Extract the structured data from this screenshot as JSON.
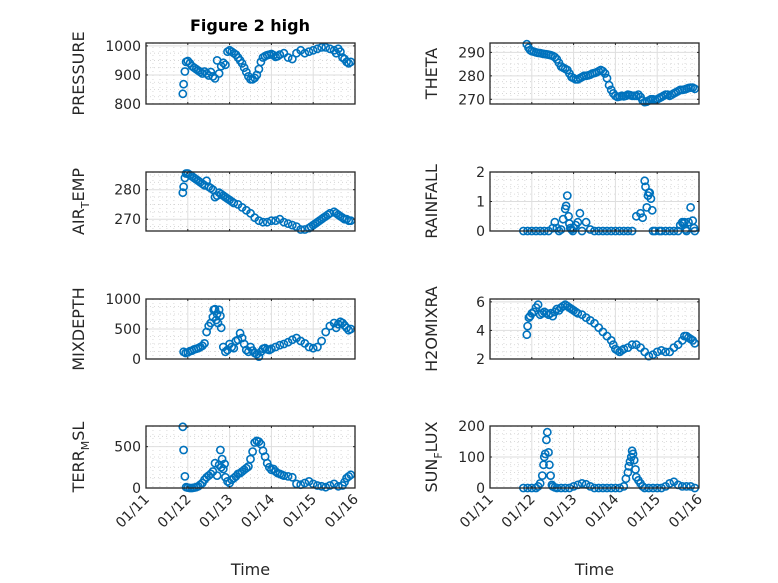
{
  "figure": {
    "title": "Figure 2 high",
    "marker_color": "#0072BD",
    "x_tick_labels": [
      "01/11",
      "01/12",
      "01/13",
      "01/14",
      "01/15",
      "01/16"
    ],
    "x_label": "Time"
  },
  "chart_data": [
    {
      "type": "scatter",
      "id": "pressure",
      "title": "Figure 2 high",
      "ylabel_main": "PRESSURE",
      "ylabel_sub": "",
      "ylabel_tail": "",
      "xlabel": "",
      "xlim_days": [
        0,
        5
      ],
      "ylim": [
        800,
        1010
      ],
      "yticks": [
        800,
        900,
        1000
      ],
      "x_days": [
        0.88,
        0.9,
        0.93,
        0.96,
        1.0,
        1.05,
        1.1,
        1.15,
        1.2,
        1.25,
        1.3,
        1.35,
        1.4,
        1.45,
        1.5,
        1.55,
        1.6,
        1.65,
        1.7,
        1.75,
        1.8,
        1.85,
        1.9,
        1.95,
        2.0,
        2.05,
        2.1,
        2.15,
        2.2,
        2.25,
        2.3,
        2.35,
        2.4,
        2.45,
        2.5,
        2.55,
        2.6,
        2.65,
        2.7,
        2.75,
        2.8,
        2.85,
        2.9,
        2.95,
        3.0,
        3.05,
        3.1,
        3.15,
        3.2,
        3.3,
        3.4,
        3.5,
        3.6,
        3.7,
        3.8,
        3.9,
        4.0,
        4.1,
        4.2,
        4.3,
        4.4,
        4.5,
        4.55,
        4.6,
        4.65,
        4.7,
        4.75,
        4.8,
        4.85,
        4.9
      ],
      "values": [
        835,
        868,
        912,
        945,
        948,
        940,
        930,
        925,
        920,
        915,
        910,
        905,
        912,
        905,
        898,
        910,
        895,
        888,
        950,
        905,
        930,
        942,
        935,
        980,
        985,
        980,
        975,
        970,
        960,
        950,
        940,
        925,
        910,
        895,
        885,
        885,
        890,
        900,
        920,
        945,
        960,
        965,
        968,
        970,
        972,
        968,
        962,
        965,
        970,
        975,
        960,
        955,
        975,
        985,
        975,
        980,
        985,
        990,
        995,
        995,
        990,
        985,
        975,
        990,
        980,
        960,
        955,
        945,
        940,
        945
      ]
    },
    {
      "type": "scatter",
      "id": "theta",
      "ylabel_main": "THETA",
      "ylabel_sub": "",
      "ylabel_tail": "",
      "xlabel": "",
      "xlim_days": [
        0,
        5
      ],
      "ylim": [
        268,
        294
      ],
      "yticks": [
        270,
        280,
        290
      ],
      "x_days": [
        0.88,
        0.92,
        0.96,
        1.0,
        1.05,
        1.1,
        1.15,
        1.2,
        1.25,
        1.3,
        1.35,
        1.4,
        1.45,
        1.5,
        1.55,
        1.6,
        1.65,
        1.7,
        1.75,
        1.8,
        1.85,
        1.9,
        1.95,
        2.0,
        2.05,
        2.1,
        2.15,
        2.2,
        2.25,
        2.3,
        2.35,
        2.4,
        2.45,
        2.5,
        2.55,
        2.6,
        2.65,
        2.7,
        2.75,
        2.8,
        2.85,
        2.9,
        2.95,
        3.0,
        3.05,
        3.1,
        3.15,
        3.2,
        3.25,
        3.3,
        3.35,
        3.4,
        3.45,
        3.5,
        3.55,
        3.6,
        3.65,
        3.7,
        3.75,
        3.8,
        3.85,
        3.9,
        3.95,
        4.0,
        4.05,
        4.1,
        4.15,
        4.2,
        4.25,
        4.3,
        4.35,
        4.4,
        4.45,
        4.5,
        4.55,
        4.6,
        4.65,
        4.7,
        4.75,
        4.8,
        4.85,
        4.9
      ],
      "values": [
        293.5,
        292,
        291,
        290.5,
        290.3,
        290,
        289.8,
        289.7,
        289.5,
        289.3,
        289.2,
        289,
        288.8,
        288.5,
        288,
        287,
        285.5,
        284,
        283.5,
        283,
        282.5,
        281,
        279.5,
        279,
        278.5,
        278.5,
        279,
        279.5,
        280,
        280,
        280.2,
        280.5,
        281,
        281.2,
        281.5,
        282,
        282.5,
        282,
        281,
        279,
        276,
        274,
        272.5,
        271.5,
        271,
        271.2,
        271.5,
        271.3,
        271.5,
        272,
        271.8,
        271.5,
        271.5,
        271.5,
        272,
        271,
        269.5,
        268.8,
        269,
        269.5,
        270,
        270,
        269.8,
        270,
        270.5,
        271,
        271.5,
        272,
        272,
        271.5,
        272,
        272.5,
        273,
        273.5,
        274,
        274,
        274.2,
        274.5,
        274.8,
        275,
        275,
        274.5
      ]
    },
    {
      "type": "scatter",
      "id": "air_temp",
      "ylabel_main": "AIR",
      "ylabel_sub": "T",
      "ylabel_tail": "EMP",
      "xlabel": "",
      "xlim_days": [
        0,
        5
      ],
      "ylim": [
        266,
        286
      ],
      "yticks": [
        270,
        280
      ],
      "x_days": [
        0.88,
        0.9,
        0.93,
        0.96,
        1.0,
        1.05,
        1.1,
        1.15,
        1.2,
        1.25,
        1.3,
        1.35,
        1.4,
        1.45,
        1.5,
        1.55,
        1.6,
        1.65,
        1.7,
        1.75,
        1.8,
        1.85,
        1.9,
        1.95,
        2.0,
        2.05,
        2.1,
        2.2,
        2.3,
        2.4,
        2.5,
        2.6,
        2.7,
        2.8,
        2.9,
        3.0,
        3.1,
        3.2,
        3.3,
        3.4,
        3.5,
        3.6,
        3.7,
        3.8,
        3.9,
        3.95,
        4.0,
        4.05,
        4.1,
        4.15,
        4.2,
        4.25,
        4.3,
        4.35,
        4.4,
        4.5,
        4.55,
        4.6,
        4.65,
        4.7,
        4.75,
        4.8,
        4.85,
        4.9
      ],
      "values": [
        279,
        281,
        284,
        285.5,
        285.5,
        285,
        284.5,
        284,
        283.5,
        283,
        282.5,
        282,
        281.5,
        283,
        281,
        280.5,
        280,
        277.5,
        278,
        279,
        278.5,
        278,
        277.5,
        277,
        276.5,
        276,
        275.5,
        275,
        274,
        273,
        272,
        270.5,
        269.5,
        269,
        269,
        269.5,
        269.5,
        270,
        269,
        268.5,
        268,
        267.5,
        266.5,
        266.5,
        267,
        267.5,
        268,
        268.5,
        269,
        269.5,
        270,
        270.5,
        271,
        271.5,
        272,
        272.5,
        272,
        271.5,
        271,
        270.5,
        270,
        270,
        269.5,
        269.5
      ]
    },
    {
      "type": "scatter",
      "id": "rainfall",
      "ylabel_main": "RAINFALL",
      "ylabel_sub": "",
      "ylabel_tail": "",
      "xlabel": "",
      "xlim_days": [
        0,
        5
      ],
      "ylim": [
        0,
        2
      ],
      "yticks": [
        0,
        1,
        2
      ],
      "x_days": [
        0.8,
        0.9,
        1.0,
        1.1,
        1.2,
        1.3,
        1.4,
        1.5,
        1.55,
        1.6,
        1.65,
        1.7,
        1.75,
        1.8,
        1.82,
        1.85,
        1.88,
        1.9,
        1.92,
        1.95,
        1.98,
        2.0,
        2.05,
        2.1,
        2.15,
        2.2,
        2.3,
        2.4,
        2.5,
        2.6,
        2.7,
        2.8,
        2.9,
        3.0,
        3.1,
        3.2,
        3.3,
        3.4,
        3.5,
        3.6,
        3.65,
        3.7,
        3.72,
        3.75,
        3.78,
        3.8,
        3.82,
        3.85,
        3.88,
        3.9,
        3.95,
        4.05,
        4.1,
        4.2,
        4.3,
        4.4,
        4.5,
        4.55,
        4.6,
        4.62,
        4.65,
        4.68,
        4.7,
        4.75,
        4.8,
        4.85,
        4.88,
        4.9
      ],
      "values": [
        0,
        0,
        0,
        0,
        0,
        0,
        0,
        0.1,
        0.3,
        0.1,
        0,
        0.05,
        0.4,
        0.75,
        0.85,
        1.2,
        0.5,
        0.25,
        0.1,
        0.05,
        0,
        0.1,
        0.2,
        0.3,
        0.6,
        0,
        0.3,
        0.05,
        0,
        0,
        0,
        0,
        0,
        0,
        0,
        0,
        0,
        0,
        0.5,
        0.6,
        0.45,
        1.7,
        1.5,
        0.8,
        1.2,
        1.3,
        1.3,
        1.1,
        0.7,
        0,
        0,
        0,
        0,
        0,
        0,
        0,
        0,
        0.2,
        0.3,
        0.25,
        0.3,
        0.05,
        0,
        0.3,
        0.8,
        0.35,
        0.1,
        0
      ]
    },
    {
      "type": "scatter",
      "id": "mixdepth",
      "ylabel_main": "MIXDEPTH",
      "ylabel_sub": "",
      "ylabel_tail": "",
      "xlabel": "",
      "xlim_days": [
        0,
        5
      ],
      "ylim": [
        0,
        1000
      ],
      "yticks": [
        0,
        500,
        1000
      ],
      "x_days": [
        0.9,
        0.95,
        1.0,
        1.05,
        1.1,
        1.15,
        1.2,
        1.25,
        1.3,
        1.35,
        1.4,
        1.45,
        1.5,
        1.55,
        1.6,
        1.62,
        1.65,
        1.68,
        1.7,
        1.72,
        1.75,
        1.78,
        1.8,
        1.85,
        1.9,
        1.95,
        2.0,
        2.05,
        2.1,
        2.15,
        2.2,
        2.25,
        2.3,
        2.35,
        2.4,
        2.45,
        2.5,
        2.55,
        2.6,
        2.65,
        2.7,
        2.75,
        2.8,
        2.85,
        2.9,
        2.95,
        3.0,
        3.1,
        3.2,
        3.3,
        3.4,
        3.5,
        3.6,
        3.7,
        3.8,
        3.9,
        4.0,
        4.1,
        4.2,
        4.3,
        4.4,
        4.5,
        4.55,
        4.6,
        4.65,
        4.7,
        4.75,
        4.8,
        4.85,
        4.9
      ],
      "values": [
        120,
        100,
        110,
        130,
        140,
        160,
        170,
        180,
        200,
        220,
        260,
        450,
        550,
        600,
        700,
        820,
        830,
        650,
        750,
        600,
        820,
        720,
        520,
        200,
        120,
        150,
        250,
        200,
        180,
        300,
        320,
        430,
        350,
        250,
        150,
        120,
        200,
        140,
        100,
        80,
        40,
        120,
        170,
        180,
        160,
        150,
        170,
        200,
        230,
        250,
        280,
        320,
        350,
        300,
        260,
        200,
        180,
        200,
        300,
        450,
        550,
        600,
        520,
        580,
        620,
        600,
        560,
        520,
        480,
        500
      ]
    },
    {
      "type": "scatter",
      "id": "h2omixra",
      "ylabel_main": "H2OMIXRA",
      "ylabel_sub": "",
      "ylabel_tail": "",
      "xlabel": "",
      "xlim_days": [
        0,
        5
      ],
      "ylim": [
        2,
        6.2
      ],
      "yticks": [
        2,
        4,
        6
      ],
      "x_days": [
        0.88,
        0.9,
        0.93,
        0.96,
        1.0,
        1.05,
        1.1,
        1.15,
        1.2,
        1.25,
        1.3,
        1.35,
        1.4,
        1.45,
        1.5,
        1.55,
        1.6,
        1.65,
        1.7,
        1.75,
        1.8,
        1.85,
        1.9,
        1.95,
        2.0,
        2.05,
        2.1,
        2.2,
        2.3,
        2.4,
        2.5,
        2.6,
        2.7,
        2.8,
        2.9,
        2.95,
        3.0,
        3.05,
        3.1,
        3.15,
        3.2,
        3.3,
        3.4,
        3.5,
        3.6,
        3.7,
        3.8,
        3.9,
        4.0,
        4.1,
        4.2,
        4.3,
        4.4,
        4.5,
        4.6,
        4.65,
        4.7,
        4.75,
        4.8,
        4.85,
        4.9
      ],
      "values": [
        3.7,
        4.3,
        4.9,
        5.0,
        5.2,
        5.3,
        5.6,
        5.8,
        5.1,
        5.2,
        5.3,
        5.2,
        5.1,
        5.2,
        5.0,
        5.3,
        5.5,
        5.4,
        5.6,
        5.7,
        5.8,
        5.7,
        5.6,
        5.5,
        5.4,
        5.3,
        5.2,
        5.1,
        4.9,
        4.7,
        4.5,
        4.2,
        3.9,
        3.6,
        3.3,
        3.0,
        2.7,
        2.6,
        2.5,
        2.6,
        2.7,
        2.8,
        3.0,
        3.0,
        2.8,
        2.5,
        2.2,
        2.3,
        2.5,
        2.6,
        2.5,
        2.5,
        2.8,
        3.0,
        3.3,
        3.6,
        3.6,
        3.5,
        3.4,
        3.3,
        3.1
      ]
    },
    {
      "type": "scatter",
      "id": "terr_msl",
      "ylabel_main": "TERR",
      "ylabel_sub": "M",
      "ylabel_tail": "SL",
      "xlabel": "Time",
      "xlim_days": [
        0,
        5
      ],
      "ylim": [
        0,
        750
      ],
      "yticks": [
        0,
        500
      ],
      "x_days": [
        0.88,
        0.9,
        0.93,
        0.96,
        1.0,
        1.05,
        1.1,
        1.15,
        1.2,
        1.25,
        1.3,
        1.35,
        1.4,
        1.45,
        1.5,
        1.55,
        1.6,
        1.65,
        1.7,
        1.75,
        1.78,
        1.8,
        1.82,
        1.85,
        1.88,
        1.9,
        1.95,
        2.0,
        2.05,
        2.1,
        2.15,
        2.2,
        2.25,
        2.3,
        2.35,
        2.4,
        2.45,
        2.5,
        2.55,
        2.6,
        2.65,
        2.7,
        2.75,
        2.8,
        2.85,
        2.9,
        2.95,
        3.0,
        3.05,
        3.1,
        3.15,
        3.2,
        3.25,
        3.3,
        3.4,
        3.5,
        3.6,
        3.7,
        3.8,
        3.9,
        4.0,
        4.1,
        4.2,
        4.3,
        4.4,
        4.5,
        4.6,
        4.7,
        4.75,
        4.8,
        4.85,
        4.9
      ],
      "values": [
        740,
        460,
        140,
        10,
        5,
        0,
        0,
        5,
        10,
        20,
        40,
        60,
        100,
        130,
        150,
        170,
        200,
        300,
        150,
        280,
        460,
        250,
        350,
        230,
        290,
        130,
        80,
        60,
        100,
        120,
        140,
        170,
        180,
        200,
        220,
        240,
        260,
        350,
        440,
        550,
        570,
        560,
        530,
        450,
        380,
        300,
        250,
        220,
        230,
        200,
        180,
        170,
        160,
        150,
        140,
        130,
        50,
        40,
        60,
        80,
        50,
        30,
        20,
        10,
        30,
        50,
        20,
        30,
        70,
        120,
        140,
        160
      ]
    },
    {
      "type": "scatter",
      "id": "sun_flux",
      "ylabel_main": "SUN",
      "ylabel_sub": "F",
      "ylabel_tail": "LUX",
      "xlabel": "Time",
      "xlim_days": [
        0,
        5
      ],
      "ylim": [
        0,
        200
      ],
      "yticks": [
        0,
        100,
        200
      ],
      "x_days": [
        0.8,
        0.9,
        1.0,
        1.1,
        1.15,
        1.2,
        1.25,
        1.28,
        1.3,
        1.32,
        1.35,
        1.37,
        1.4,
        1.42,
        1.45,
        1.48,
        1.5,
        1.55,
        1.6,
        1.7,
        1.8,
        1.9,
        2.0,
        2.1,
        2.2,
        2.3,
        2.4,
        2.5,
        2.6,
        2.7,
        2.8,
        2.9,
        3.0,
        3.1,
        3.2,
        3.25,
        3.3,
        3.32,
        3.35,
        3.38,
        3.4,
        3.42,
        3.45,
        3.48,
        3.5,
        3.55,
        3.6,
        3.65,
        3.7,
        3.8,
        3.9,
        4.0,
        4.1,
        4.2,
        4.3,
        4.4,
        4.5,
        4.6,
        4.7,
        4.8,
        4.9
      ],
      "values": [
        0,
        0,
        0,
        0,
        5,
        15,
        40,
        75,
        100,
        110,
        155,
        180,
        115,
        75,
        40,
        10,
        5,
        2,
        0,
        0,
        0,
        0,
        5,
        10,
        15,
        12,
        5,
        0,
        0,
        0,
        0,
        0,
        0,
        0,
        5,
        30,
        50,
        70,
        85,
        100,
        120,
        110,
        90,
        60,
        35,
        25,
        15,
        5,
        0,
        0,
        0,
        0,
        0,
        5,
        15,
        20,
        10,
        5,
        5,
        5,
        0
      ]
    }
  ]
}
